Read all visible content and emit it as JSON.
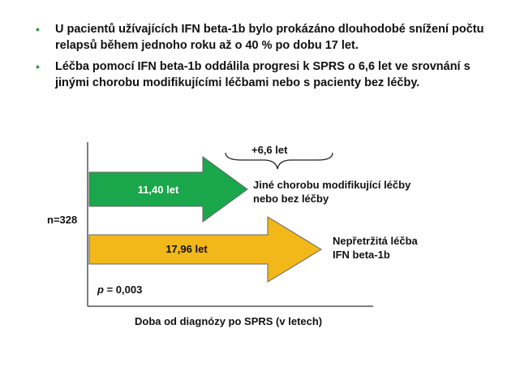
{
  "bullets": [
    "U pacientů užívajících IFN beta-1b bylo prokázáno dlouhodobé snížení počtu relapsů během jednoho roku až o 40 % po dobu 17 let.",
    "Léčba pomocí IFN beta-1b oddálila progresi k SPRS o 6,6 let ve srovnání s jinými chorobu modifikujícími léčbami nebo s pacienty bez léčby."
  ],
  "diagram": {
    "difference_label": "+6,6 let",
    "arrow_green": {
      "value": "11,40 let",
      "label_line1": "Jiné chorobu modifikující léčby",
      "label_line2": "nebo bez léčby",
      "color": "#1aa64a"
    },
    "arrow_yellow": {
      "value": "17,96 let",
      "label_line1": "Nepřetržitá léčba",
      "label_line2": "IFN beta-1b",
      "color": "#f2b81a"
    },
    "n_label": "n=328",
    "p_value": {
      "italic": "p",
      "rest": " = 0,003"
    },
    "x_axis_label": "Doba od diagnózy po SPRS (v letech)"
  }
}
